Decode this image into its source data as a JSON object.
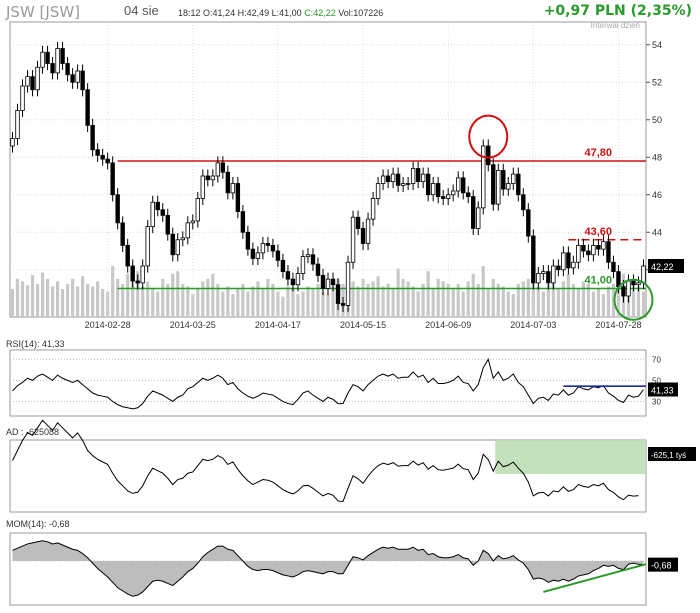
{
  "header": {
    "symbol": "JSW [JSW]",
    "date": "04 sie",
    "time": "18:12",
    "open": "O:41,24",
    "high": "H:42,49",
    "low": "L:41,00",
    "close": "C:42,22",
    "volume": "Vol:107226",
    "change": "+0,97 PLN (2,35%)",
    "interval": "Interwał dzień"
  },
  "colors": {
    "up": "#2a9a2a",
    "down": "#d01010",
    "grid": "#d4d4d4"
  },
  "chart_data": [
    {
      "type": "candlestick",
      "panel": "price",
      "x": [
        "2014-02-03",
        "2014-02-04",
        "2014-02-05",
        "2014-02-06",
        "2014-02-07",
        "2014-02-10",
        "2014-02-11",
        "2014-02-12",
        "2014-02-13",
        "2014-02-14",
        "2014-02-17",
        "2014-02-18",
        "2014-02-19",
        "2014-02-20",
        "2014-02-21",
        "2014-02-24",
        "2014-02-25",
        "2014-02-26",
        "2014-02-27",
        "2014-02-28",
        "2014-03-03",
        "2014-03-04",
        "2014-03-05",
        "2014-03-06",
        "2014-03-07",
        "2014-03-10",
        "2014-03-11",
        "2014-03-12",
        "2014-03-13",
        "2014-03-14",
        "2014-03-17",
        "2014-03-18",
        "2014-03-19",
        "2014-03-20",
        "2014-03-21",
        "2014-03-24",
        "2014-03-25",
        "2014-03-26",
        "2014-03-27",
        "2014-03-28",
        "2014-03-31",
        "2014-04-01",
        "2014-04-02",
        "2014-04-03",
        "2014-04-04",
        "2014-04-07",
        "2014-04-08",
        "2014-04-09",
        "2014-04-10",
        "2014-04-11",
        "2014-04-14",
        "2014-04-15",
        "2014-04-16",
        "2014-04-17",
        "2014-04-22",
        "2014-04-23",
        "2014-04-24",
        "2014-04-25",
        "2014-04-28",
        "2014-04-29",
        "2014-04-30",
        "2014-05-02",
        "2014-05-05",
        "2014-05-06",
        "2014-05-07",
        "2014-05-08",
        "2014-05-09",
        "2014-05-12",
        "2014-05-13",
        "2014-05-14",
        "2014-05-15",
        "2014-05-16",
        "2014-05-19",
        "2014-05-20",
        "2014-05-21",
        "2014-05-22",
        "2014-05-23",
        "2014-05-26",
        "2014-05-27",
        "2014-05-28",
        "2014-05-29",
        "2014-05-30",
        "2014-06-02",
        "2014-06-03",
        "2014-06-04",
        "2014-06-05",
        "2014-06-06",
        "2014-06-09",
        "2014-06-10",
        "2014-06-11",
        "2014-06-12",
        "2014-06-13",
        "2014-06-16",
        "2014-06-17",
        "2014-06-18",
        "2014-06-20",
        "2014-06-23",
        "2014-06-24",
        "2014-06-25",
        "2014-06-26",
        "2014-06-27",
        "2014-06-30",
        "2014-07-01",
        "2014-07-02",
        "2014-07-03",
        "2014-07-04",
        "2014-07-07",
        "2014-07-08",
        "2014-07-09",
        "2014-07-10",
        "2014-07-11",
        "2014-07-14",
        "2014-07-15",
        "2014-07-16",
        "2014-07-17",
        "2014-07-18",
        "2014-07-21",
        "2014-07-22",
        "2014-07-23",
        "2014-07-24",
        "2014-07-25",
        "2014-07-28",
        "2014-07-29",
        "2014-07-30",
        "2014-07-31",
        "2014-08-01",
        "2014-08-04"
      ],
      "close": [
        49.0,
        50.5,
        51.8,
        52.3,
        51.6,
        52.8,
        53.6,
        53.0,
        52.5,
        53.8,
        53.0,
        52.4,
        52.0,
        52.6,
        51.6,
        49.7,
        48.4,
        48.1,
        47.9,
        47.7,
        46.0,
        44.5,
        43.3,
        42.2,
        41.4,
        41.3,
        42.2,
        44.3,
        45.6,
        45.2,
        44.9,
        43.9,
        42.8,
        43.6,
        43.7,
        44.5,
        44.6,
        45.8,
        47.0,
        46.8,
        47.0,
        47.7,
        47.2,
        46.1,
        46.6,
        45.1,
        44.0,
        43.1,
        42.6,
        42.9,
        43.4,
        43.3,
        43.0,
        42.5,
        41.9,
        41.5,
        41.2,
        41.8,
        42.7,
        42.8,
        42.3,
        41.7,
        41.0,
        41.5,
        41.2,
        40.2,
        40.1,
        42.4,
        44.8,
        44.2,
        43.4,
        44.7,
        45.8,
        46.6,
        47.0,
        46.7,
        47.1,
        46.5,
        46.6,
        46.6,
        47.4,
        46.7,
        47.1,
        46.0,
        46.6,
        45.9,
        45.8,
        46.0,
        46.2,
        46.9,
        46.1,
        45.9,
        44.2,
        45.3,
        48.6,
        47.6,
        45.5,
        47.3,
        46.3,
        46.6,
        47.1,
        46.0,
        45.2,
        43.8,
        41.3,
        41.8,
        41.9,
        41.3,
        42.2,
        42.0,
        42.9,
        42.1,
        42.4,
        43.3,
        43.0,
        42.8,
        43.3,
        43.1,
        43.5,
        42.4,
        41.9,
        41.1,
        40.6,
        41.4,
        41.2,
        41.3,
        42.2
      ],
      "ohlc_note": "",
      "ylim": [
        39.8,
        55.0
      ],
      "yticks": [
        42,
        44,
        46,
        48,
        50,
        52,
        54
      ],
      "xtick_labels": [
        "2014-02-28",
        "2014-03-25",
        "2014-04-17",
        "2014-05-15",
        "2014-06-09",
        "2014-07-03",
        "2014-07-28"
      ],
      "last_label": "42,22",
      "annotations": [
        {
          "type": "hline",
          "value": 47.8,
          "label": "47,80",
          "style": "solid",
          "color": "#d01010"
        },
        {
          "type": "hline",
          "value": 43.6,
          "label": "43,60",
          "style": "dashed",
          "color": "#d01010"
        },
        {
          "type": "hline",
          "value": 41.0,
          "label": "41,00",
          "style": "solid",
          "color": "#2a9a2a"
        }
      ],
      "volume": [
        22,
        30,
        28,
        25,
        33,
        26,
        35,
        30,
        24,
        28,
        22,
        26,
        30,
        24,
        32,
        26,
        24,
        28,
        22,
        20,
        40,
        30,
        26,
        34,
        28,
        36,
        24,
        28,
        22,
        20,
        30,
        26,
        34,
        36,
        26,
        24,
        18,
        22,
        28,
        30,
        34,
        26,
        20,
        24,
        18,
        22,
        26,
        20,
        24,
        28,
        22,
        30,
        26,
        20,
        16,
        24,
        22,
        18,
        20,
        24,
        22,
        26,
        20,
        18,
        24,
        30,
        26,
        40,
        28,
        24,
        30,
        26,
        28,
        32,
        24,
        26,
        22,
        38,
        30,
        28,
        24,
        20,
        26,
        36,
        22,
        30,
        28,
        26,
        22,
        26,
        20,
        28,
        34,
        26,
        40,
        22,
        30,
        26,
        24,
        20,
        18,
        26,
        28,
        30,
        36,
        24,
        20,
        26,
        30,
        22,
        28,
        34,
        26,
        22,
        28,
        26,
        20,
        22,
        18,
        24,
        26,
        28,
        34,
        30,
        26,
        24,
        20
      ],
      "volume_note": ""
    },
    {
      "type": "line",
      "panel": "rsi",
      "label": "RSI(14): 41,33",
      "yticks": [
        30,
        50,
        70
      ],
      "ylim": [
        20,
        75
      ],
      "last_label": "41,33",
      "values": [
        40,
        45,
        48,
        52,
        50,
        54,
        56,
        53,
        50,
        55,
        52,
        50,
        48,
        50,
        46,
        42,
        38,
        36,
        35,
        34,
        30,
        27,
        25,
        24,
        23,
        24,
        28,
        35,
        40,
        38,
        36,
        33,
        30,
        34,
        36,
        42,
        44,
        48,
        52,
        50,
        52,
        55,
        52,
        46,
        48,
        42,
        38,
        35,
        33,
        35,
        38,
        37,
        36,
        33,
        30,
        28,
        27,
        32,
        38,
        40,
        36,
        33,
        30,
        34,
        32,
        28,
        28,
        38,
        46,
        44,
        40,
        46,
        50,
        54,
        56,
        54,
        56,
        52,
        53,
        53,
        58,
        53,
        55,
        48,
        52,
        47,
        47,
        48,
        50,
        54,
        48,
        47,
        40,
        46,
        62,
        70,
        52,
        58,
        50,
        52,
        56,
        48,
        44,
        36,
        28,
        33,
        34,
        31,
        37,
        36,
        41,
        36,
        38,
        44,
        42,
        41,
        44,
        43,
        45,
        38,
        35,
        31,
        29,
        36,
        34,
        35,
        41.33
      ]
    },
    {
      "type": "line",
      "panel": "ad",
      "label": "AD : -625088",
      "last_label": "-625,1 tyś",
      "values": [
        -980,
        -940,
        -900,
        -870,
        -880,
        -850,
        -820,
        -840,
        -860,
        -830,
        -850,
        -870,
        -890,
        -870,
        -900,
        -940,
        -960,
        -975,
        -985,
        -995,
        -1030,
        -1060,
        -1080,
        -1100,
        -1110,
        -1105,
        -1080,
        -1040,
        -1010,
        -1020,
        -1030,
        -1050,
        -1075,
        -1055,
        -1050,
        -1030,
        -1025,
        -1000,
        -975,
        -980,
        -975,
        -960,
        -970,
        -995,
        -985,
        -1015,
        -1040,
        -1060,
        -1075,
        -1065,
        -1055,
        -1058,
        -1065,
        -1080,
        -1095,
        -1105,
        -1112,
        -1100,
        -1080,
        -1078,
        -1090,
        -1105,
        -1120,
        -1110,
        -1117,
        -1140,
        -1142,
        -1090,
        -1040,
        -1052,
        -1070,
        -1042,
        -1018,
        -1000,
        -990,
        -996,
        -988,
        -1002,
        -1000,
        -1000,
        -982,
        -998,
        -988,
        -1014,
        -1000,
        -1016,
        -1018,
        -1014,
        -1010,
        -994,
        -1012,
        -1016,
        -1055,
        -1030,
        -955,
        -976,
        -1022,
        -982,
        -1004,
        -998,
        -986,
        -1010,
        -1030,
        -1065,
        -1120,
        -1108,
        -1106,
        -1120,
        -1100,
        -1104,
        -1084,
        -1102,
        -1095,
        -1075,
        -1082,
        -1086,
        -1075,
        -1080,
        -1070,
        -1095,
        -1106,
        -1124,
        -1135,
        -1117,
        -1121,
        -1119,
        -625
      ],
      "values_note": ""
    },
    {
      "type": "area",
      "panel": "mom",
      "label": "MOM(14): -0,68",
      "last_label": "-0,68",
      "values": [
        2.0,
        2.4,
        2.8,
        3.2,
        3.4,
        3.6,
        3.8,
        3.6,
        3.2,
        3.4,
        3.0,
        2.6,
        2.2,
        2.0,
        1.4,
        0.6,
        -0.4,
        -1.4,
        -2.2,
        -3.0,
        -4.0,
        -5.0,
        -5.6,
        -6.2,
        -6.6,
        -6.4,
        -5.8,
        -4.8,
        -3.8,
        -3.6,
        -3.8,
        -4.2,
        -4.6,
        -3.8,
        -3.0,
        -2.0,
        -1.4,
        -0.4,
        0.8,
        1.6,
        2.2,
        2.8,
        2.8,
        2.2,
        2.0,
        1.0,
        0.0,
        -1.0,
        -1.6,
        -1.8,
        -1.6,
        -1.6,
        -1.8,
        -2.2,
        -2.6,
        -2.8,
        -3.0,
        -2.6,
        -2.0,
        -1.8,
        -2.0,
        -2.2,
        -2.4,
        -2.0,
        -2.0,
        -2.4,
        -2.4,
        -0.8,
        0.8,
        0.6,
        0.2,
        1.0,
        1.6,
        2.2,
        2.6,
        2.4,
        2.6,
        2.2,
        2.2,
        2.2,
        2.6,
        2.0,
        2.2,
        1.2,
        1.4,
        0.8,
        0.6,
        0.6,
        0.8,
        1.2,
        0.6,
        0.4,
        -0.8,
        0.0,
        2.0,
        1.4,
        0.0,
        1.0,
        0.4,
        0.6,
        1.0,
        0.2,
        -0.4,
        -1.6,
        -3.4,
        -3.2,
        -3.4,
        -4.0,
        -3.6,
        -3.8,
        -3.4,
        -3.8,
        -3.4,
        -2.8,
        -2.6,
        -2.4,
        -1.8,
        -1.4,
        -0.8,
        -1.0,
        -0.8,
        -1.4,
        -1.6,
        -0.6,
        -0.4,
        -0.6,
        -0.68
      ]
    }
  ]
}
